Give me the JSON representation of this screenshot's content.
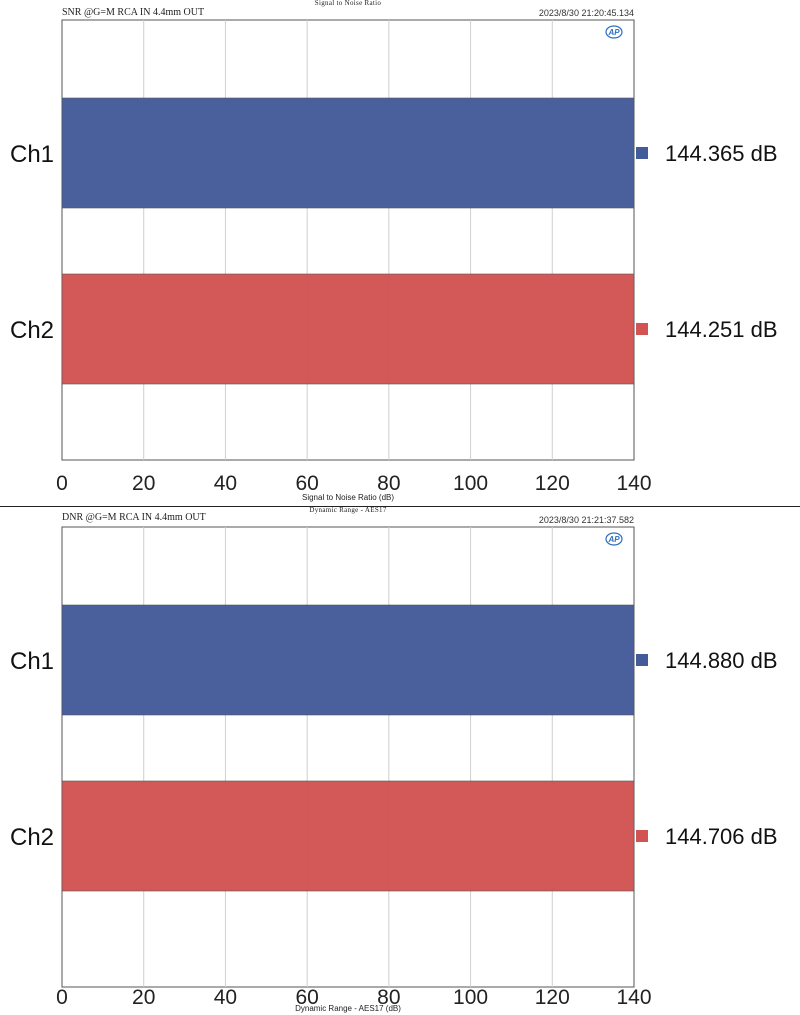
{
  "chart_data": [
    {
      "type": "bar",
      "orientation": "horizontal",
      "title": "Signal to Noise Ratio",
      "subtitle": "SNR @G=M RCA IN 4.4mm OUT",
      "timestamp": "2023/8/30 21:20:45.134",
      "xlabel": "Signal to Noise Ratio (dB)",
      "ylabel": "",
      "categories": [
        "Ch1",
        "Ch2"
      ],
      "values": [
        144.365,
        144.251
      ],
      "value_labels": [
        "144.365 dB",
        "144.251 dB"
      ],
      "colors": [
        "#445b9a",
        "#d15453"
      ],
      "xlim": [
        0,
        140
      ],
      "xticks": [
        0,
        20,
        40,
        60,
        80,
        100,
        120,
        140
      ],
      "grid": true,
      "legend": "right"
    },
    {
      "type": "bar",
      "orientation": "horizontal",
      "title": "Dynamic Range - AES17",
      "subtitle": "DNR @G=M RCA IN 4.4mm OUT",
      "timestamp": "2023/8/30 21:21:37.582",
      "xlabel": "Dynamic Range - AES17 (dB)",
      "ylabel": "",
      "categories": [
        "Ch1",
        "Ch2"
      ],
      "values": [
        144.88,
        144.706
      ],
      "value_labels": [
        "144.880 dB",
        "144.706 dB"
      ],
      "colors": [
        "#445b9a",
        "#d15453"
      ],
      "xlim": [
        0,
        140
      ],
      "xticks": [
        0,
        20,
        40,
        60,
        80,
        100,
        120,
        140
      ],
      "grid": true,
      "legend": "right"
    }
  ],
  "logo": {
    "text": "AP",
    "icon": "audio-precision-logo-icon",
    "color": "#2d6fc0"
  }
}
